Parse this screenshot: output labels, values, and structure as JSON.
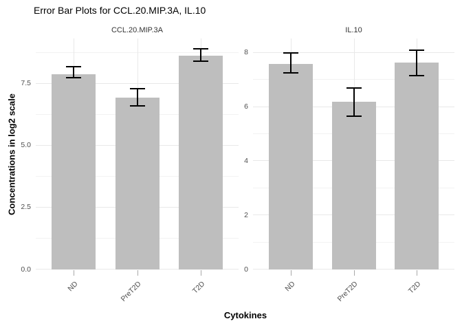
{
  "chart_data": {
    "type": "bar",
    "title": "Error Bar Plots for CCL.20.MIP.3A, IL.10",
    "xlabel": "Cytokines",
    "ylabel": "Concentrations in log2 scale",
    "categories": [
      "ND",
      "PreT2D",
      "T2D"
    ],
    "legend": "none",
    "grid": true,
    "facets": [
      {
        "name": "CCL.20.MIP.3A",
        "ylim": [
          0,
          9.33
        ],
        "yticks": [
          {
            "v": 0,
            "label": "0.0"
          },
          {
            "v": 2.5,
            "label": "2.5"
          },
          {
            "v": 5,
            "label": "5.0"
          },
          {
            "v": 7.5,
            "label": "7.5"
          }
        ],
        "minor_gridlines": [
          1.25,
          3.75,
          6.25,
          8.75
        ],
        "series": [
          {
            "category": "ND",
            "mean": 7.9,
            "ymin": 7.75,
            "ymax": 8.2
          },
          {
            "category": "PreT2D",
            "mean": 6.95,
            "ymin": 6.6,
            "ymax": 7.3
          },
          {
            "category": "T2D",
            "mean": 8.65,
            "ymin": 8.4,
            "ymax": 8.9
          }
        ]
      },
      {
        "name": "IL.10",
        "ylim": [
          0,
          8.53
        ],
        "yticks": [
          {
            "v": 0,
            "label": "0"
          },
          {
            "v": 2,
            "label": "2"
          },
          {
            "v": 4,
            "label": "4"
          },
          {
            "v": 6,
            "label": "6"
          },
          {
            "v": 8,
            "label": "8"
          }
        ],
        "minor_gridlines": [
          1,
          3,
          5,
          7
        ],
        "series": [
          {
            "category": "ND",
            "mean": 7.6,
            "ymin": 7.25,
            "ymax": 8.0
          },
          {
            "category": "PreT2D",
            "mean": 6.2,
            "ymin": 5.65,
            "ymax": 6.7
          },
          {
            "category": "T2D",
            "mean": 7.65,
            "ymin": 7.15,
            "ymax": 8.1
          }
        ]
      }
    ],
    "style": {
      "bar_fill": "#bebebe",
      "grid_major": "#e8e8e8",
      "grid_minor": "#f2f2f2",
      "axis_text": "#4d4d4d",
      "strip_text": "#333333",
      "errorbar": "#000000",
      "tick_mark": "#a8a8a8",
      "background": "#ffffff"
    }
  }
}
